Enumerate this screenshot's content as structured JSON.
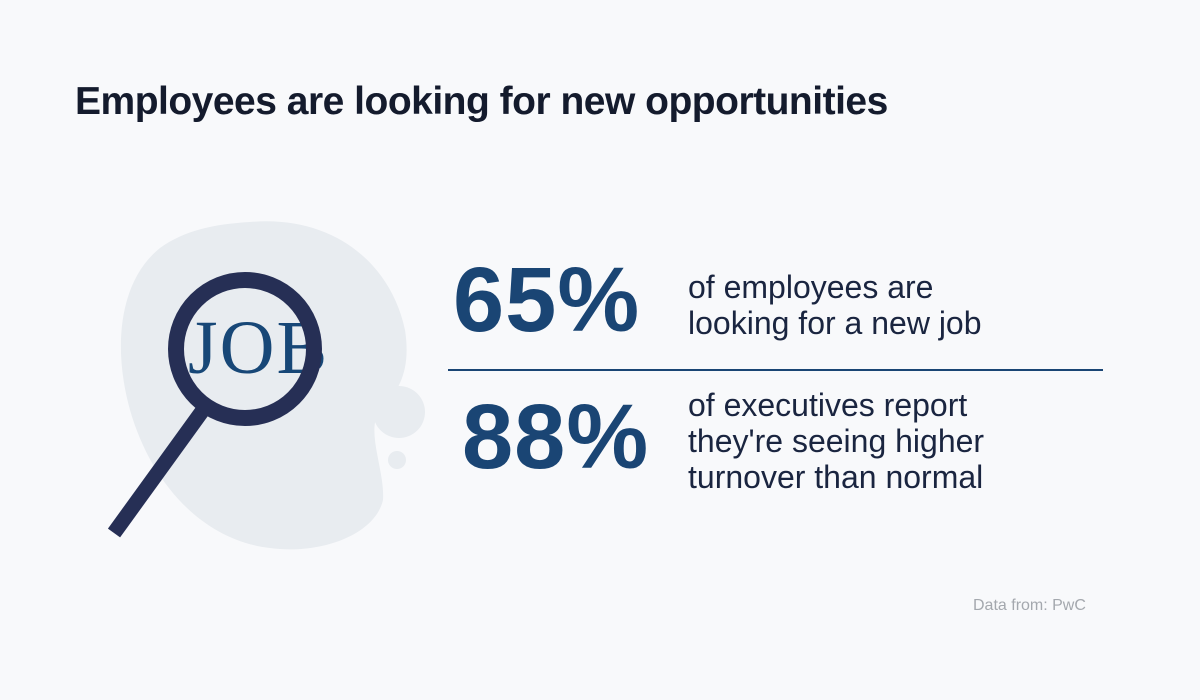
{
  "title": "Employees are looking for new opportunities",
  "illustration": {
    "word": "JOB",
    "icon": "magnifying-glass-icon"
  },
  "stats": [
    {
      "value": "65%",
      "lines": [
        "of employees are",
        "looking for a new job"
      ]
    },
    {
      "value": "88%",
      "lines": [
        "of executives report",
        "they're seeing higher",
        "turnover than normal"
      ]
    }
  ],
  "source": "Data from: PwC",
  "colors": {
    "background": "#f8f9fb",
    "accent": "#1a4574",
    "magnifier": "#262f55",
    "blob": "#e8ecf0"
  }
}
